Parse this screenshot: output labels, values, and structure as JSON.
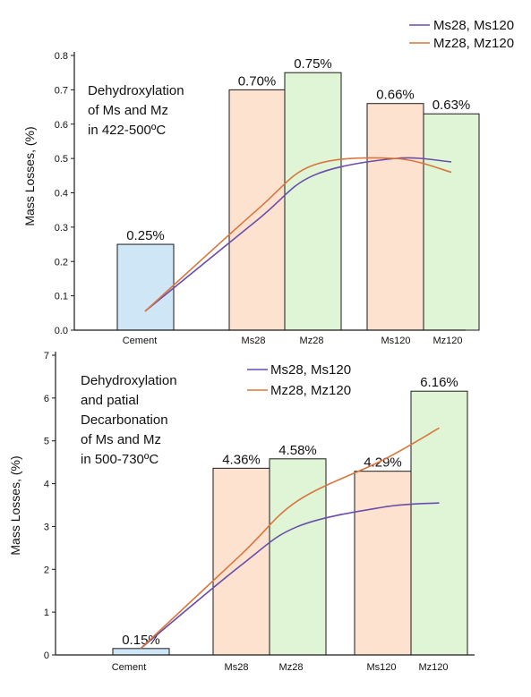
{
  "chart_data": [
    {
      "type": "bar",
      "ylabel": "Mass Losses, (%)",
      "ylim": [
        0,
        0.85
      ],
      "yticks": [
        "0.0",
        "0.1",
        "0.2",
        "0.3",
        "0.4",
        "0.5",
        "0.6",
        "0.7",
        "0.8"
      ],
      "categories": [
        "Cement",
        "Ms28",
        "Mz28",
        "Ms120",
        "Mz120"
      ],
      "values": [
        0.25,
        0.7,
        0.75,
        0.66,
        0.63
      ],
      "value_labels": [
        "0.25%",
        "0.70%",
        "0.75%",
        "0.66%",
        "0.63%"
      ],
      "bar_colors": [
        "#cfe6f7",
        "#fde3cf",
        "#dff5d6",
        "#fde3cf",
        "#dff5d6"
      ],
      "annotation": [
        "Dehydroxylation",
        "of Ms and Mz",
        "in 422-500ºC"
      ],
      "legend": {
        "placement": "top-right",
        "entries": [
          {
            "label": "Ms28, Ms120",
            "color": "#6a4cab"
          },
          {
            "label": "Mz28, Mz120",
            "color": "#d9763d"
          }
        ]
      },
      "series": [
        {
          "name": "Ms28, Ms120",
          "color": "#6a4cab",
          "x": [
            0,
            1,
            2,
            3,
            4
          ],
          "y": [
            0.055,
            0.32,
            0.45,
            0.5,
            0.49
          ]
        },
        {
          "name": "Mz28, Mz120",
          "color": "#d9763d",
          "x": [
            0,
            1,
            2,
            3,
            4
          ],
          "y": [
            0.055,
            0.35,
            0.48,
            0.5,
            0.46
          ]
        }
      ]
    },
    {
      "type": "bar",
      "ylabel": "Mass Losses, (%)",
      "ylim": [
        0,
        7
      ],
      "yticks": [
        "0",
        "1",
        "2",
        "3",
        "4",
        "5",
        "6",
        "7"
      ],
      "categories": [
        "Cement",
        "Ms28",
        "Mz28",
        "Ms120",
        "Mz120"
      ],
      "values": [
        0.15,
        4.36,
        4.58,
        4.29,
        6.16
      ],
      "value_labels": [
        "0.15%",
        "4.36%",
        "4.58%",
        "4.29%",
        "6.16%"
      ],
      "bar_colors": [
        "#cfe6f7",
        "#fde3cf",
        "#dff5d6",
        "#fde3cf",
        "#dff5d6"
      ],
      "annotation": [
        "Dehydroxylation",
        "and patial",
        "Decarbonation",
        "of Ms and Mz",
        "in 500-730ºC"
      ],
      "legend": {
        "placement": "top-center",
        "entries": [
          {
            "label": "Ms28, Ms120",
            "color": "#6a4cab"
          },
          {
            "label": "Mz28, Mz120",
            "color": "#d9763d"
          }
        ]
      },
      "series": [
        {
          "name": "Ms28, Ms120",
          "color": "#6a4cab",
          "x": [
            0,
            1,
            2,
            3,
            4
          ],
          "y": [
            0.15,
            2.1,
            3.0,
            3.45,
            3.55
          ]
        },
        {
          "name": "Mz28, Mz120",
          "color": "#d9763d",
          "x": [
            0,
            1,
            2,
            3,
            4
          ],
          "y": [
            0.15,
            2.35,
            3.6,
            4.55,
            5.3
          ]
        }
      ]
    }
  ]
}
